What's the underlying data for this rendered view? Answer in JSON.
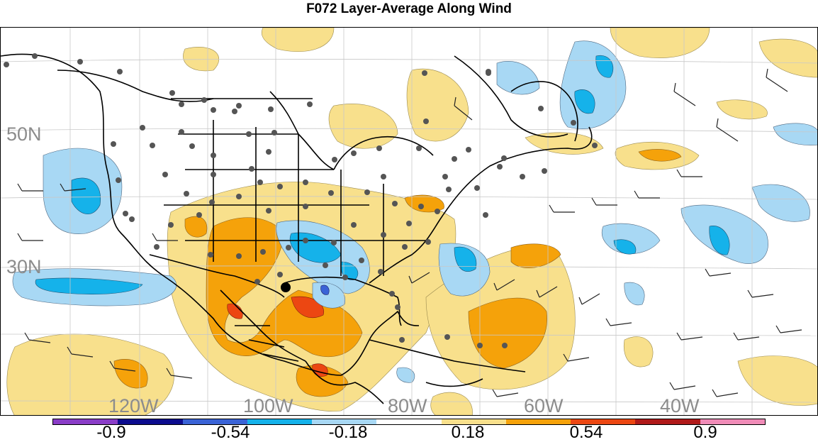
{
  "title": "F072 Layer-Average Along Wind",
  "map": {
    "lat_labels": [
      "50N",
      "30N"
    ],
    "lon_labels": [
      "120W",
      "100W",
      "80W",
      "60W",
      "40W"
    ]
  },
  "colorbar": {
    "colors": [
      "#8a3dc7",
      "#0c0c8e",
      "#3a63d6",
      "#15b2ea",
      "#a8d8f4",
      "#ffffff",
      "#f8e08c",
      "#f5a20a",
      "#ec4712",
      "#b01a1a",
      "#f08cb8"
    ],
    "tick_labels": [
      "-0.9",
      "-0.54",
      "-0.18",
      "0.18",
      "0.54",
      "0.9"
    ]
  }
}
